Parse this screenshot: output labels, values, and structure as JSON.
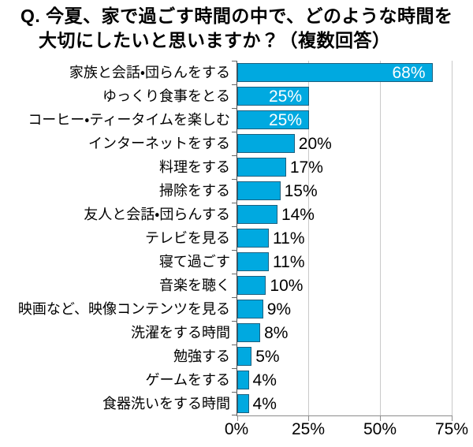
{
  "title": {
    "line1": "Q. 今夏、家で過ごす時間の中で、どのような時間を",
    "line2": "大切にしたいと思いますか？（複数回答）"
  },
  "chart_data": {
    "type": "bar",
    "orientation": "horizontal",
    "title": "Q. 今夏、家で過ごす時間の中で、どのような時間を大切にしたいと思いますか？（複数回答）",
    "categories": [
      "家族と会話・団らんをする",
      "ゆっくり食事をとる",
      "コーヒー・ティータイムを楽しむ",
      "インターネットをする",
      "料理をする",
      "掃除をする",
      "友人と会話・団らんする",
      "テレビを見る",
      "寝て過ごす",
      "音楽を聴く",
      "映画など、映像コンテンツを見る",
      "洗濯をする時間",
      "勉強する",
      "ゲームをする",
      "食器洗いをする時間"
    ],
    "values": [
      68,
      25,
      25,
      20,
      17,
      15,
      14,
      11,
      11,
      10,
      9,
      8,
      5,
      4,
      4
    ],
    "value_labels": [
      "68%",
      "25%",
      "25%",
      "20%",
      "17%",
      "15%",
      "14%",
      "11%",
      "11%",
      "10%",
      "9%",
      "8%",
      "5%",
      "4%",
      "4%"
    ],
    "xlim": [
      0,
      75
    ],
    "xticks": [
      {
        "value": 0,
        "label": "0%"
      },
      {
        "value": 25,
        "label": "25%"
      },
      {
        "value": 50,
        "label": "50%"
      },
      {
        "value": 75,
        "label": "75%"
      }
    ],
    "grid": true,
    "legend": false,
    "label_inside_threshold": 25,
    "colors": {
      "bar_fill": "#00A9E0",
      "bar_border": "#1B607F",
      "gridline": "#C9C9C9",
      "axis": "#4D4D4D",
      "value_inside": "#FFFFFF",
      "value_outside": "#000000"
    }
  }
}
